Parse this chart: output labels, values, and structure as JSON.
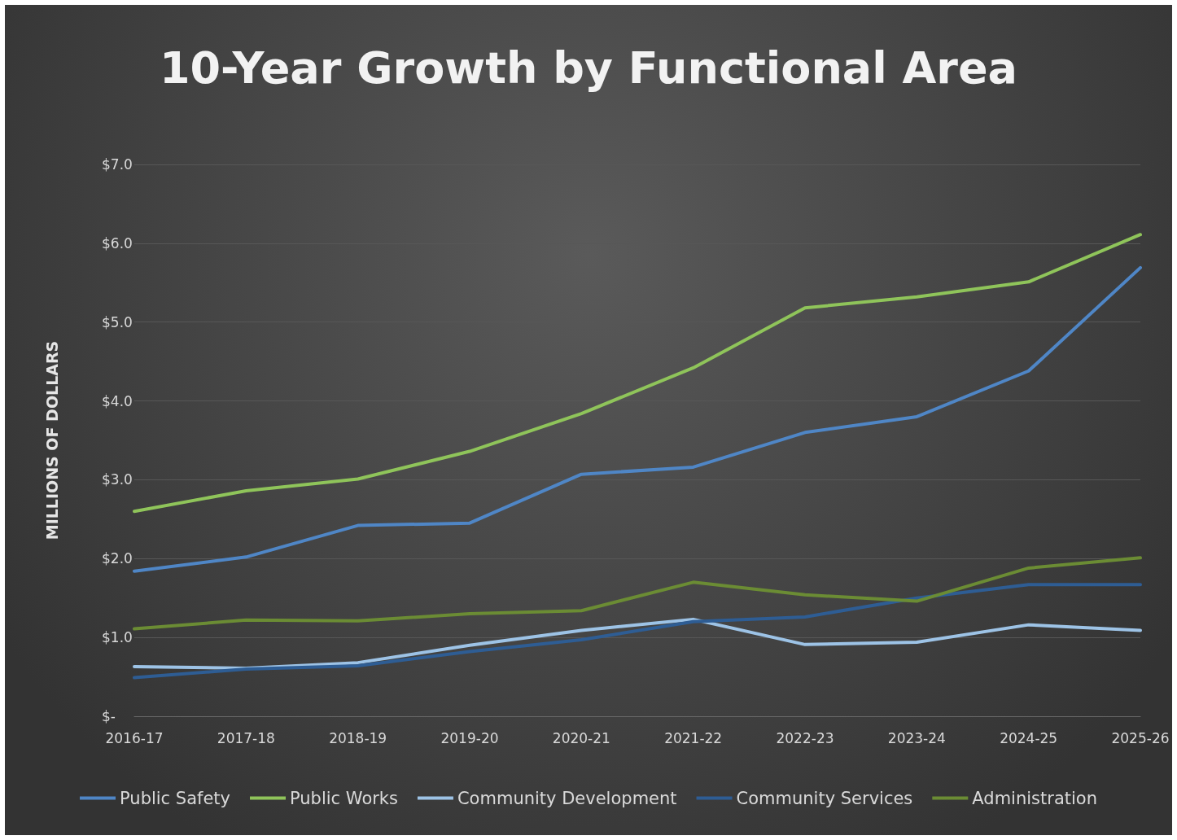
{
  "chart_data": {
    "type": "line",
    "title": "10-Year Growth by Functional Area",
    "ylabel": "MILLIONS OF DOLLARS",
    "categories": [
      "2016-17",
      "2017-18",
      "2018-19",
      "2019-20",
      "2020-21",
      "2021-22",
      "2022-23",
      "2023-24",
      "2024-25",
      "2025-26"
    ],
    "series": [
      {
        "name": "Public Safety",
        "color": "#4f86c6",
        "values": [
          1.84,
          2.02,
          2.42,
          2.45,
          3.07,
          3.16,
          3.6,
          3.8,
          4.38,
          5.69
        ]
      },
      {
        "name": "Public Works",
        "color": "#8fc45a",
        "values": [
          2.6,
          2.86,
          3.01,
          3.36,
          3.84,
          4.42,
          5.18,
          5.32,
          5.51,
          6.11
        ]
      },
      {
        "name": "Community Development",
        "color": "#9dc3e6",
        "values": [
          0.63,
          0.61,
          0.68,
          0.9,
          1.09,
          1.23,
          0.91,
          0.94,
          1.16,
          1.09
        ]
      },
      {
        "name": "Community Services",
        "color": "#2e5d94",
        "values": [
          0.49,
          0.6,
          0.64,
          0.82,
          0.97,
          1.2,
          1.26,
          1.5,
          1.67,
          1.67
        ]
      },
      {
        "name": "Administration",
        "color": "#6b8c34",
        "values": [
          1.11,
          1.22,
          1.21,
          1.3,
          1.34,
          1.7,
          1.54,
          1.46,
          1.88,
          2.01
        ]
      }
    ],
    "ylim": [
      0,
      7
    ],
    "yticks": [
      {
        "value": 0,
        "label": "$-"
      },
      {
        "value": 1,
        "label": "$1.0"
      },
      {
        "value": 2,
        "label": "$2.0"
      },
      {
        "value": 3,
        "label": "$3.0"
      },
      {
        "value": 4,
        "label": "$4.0"
      },
      {
        "value": 5,
        "label": "$5.0"
      },
      {
        "value": 6,
        "label": "$6.0"
      },
      {
        "value": 7,
        "label": "$7.0"
      }
    ],
    "grid": "y",
    "legend": "bottom",
    "marker": "none",
    "line_style": "solid"
  }
}
